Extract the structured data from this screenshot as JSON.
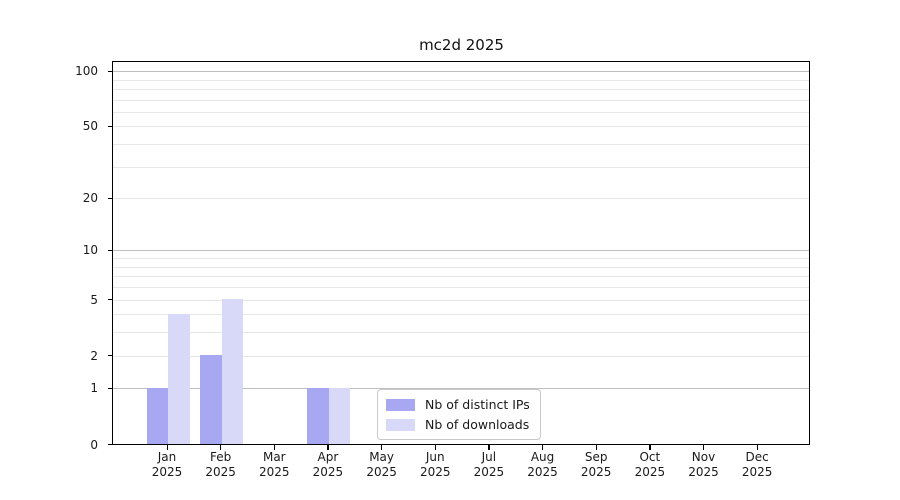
{
  "chart_data": {
    "type": "bar",
    "title": "mc2d 2025",
    "categories": [
      "Jan",
      "Feb",
      "Mar",
      "Apr",
      "May",
      "Jun",
      "Jul",
      "Aug",
      "Sep",
      "Oct",
      "Nov",
      "Dec"
    ],
    "x_year_label": "2025",
    "series": [
      {
        "name": "Nb of distinct IPs",
        "color": "#a8a8f2",
        "values": [
          1,
          2,
          0,
          1,
          0,
          0,
          0,
          0,
          0,
          0,
          0,
          0
        ]
      },
      {
        "name": "Nb of downloads",
        "color": "#d8d9f9",
        "values": [
          4,
          5,
          0,
          1,
          0,
          0,
          0,
          0,
          0,
          0,
          0,
          0
        ]
      }
    ],
    "y_axis": {
      "scale": "symlog-log1p",
      "tick_values": [
        0,
        1,
        2,
        5,
        10,
        20,
        50,
        100
      ],
      "tick_labels": [
        "0",
        "1",
        "2",
        "5",
        "10",
        "20",
        "50",
        "100"
      ],
      "major_gridlines": [
        1,
        10,
        100
      ],
      "minor_gridlines": [
        2,
        3,
        4,
        5,
        6,
        7,
        8,
        9,
        20,
        30,
        40,
        50,
        60,
        70,
        80,
        90
      ],
      "ylim": [
        0,
        112
      ]
    },
    "grid": true,
    "xlabel": "",
    "ylabel": "",
    "legend": {
      "position": "lower center",
      "labels": [
        "Nb of distinct IPs",
        "Nb of downloads"
      ]
    }
  },
  "colors": {
    "background": "#ffffff",
    "axis_frame": "#000000",
    "grid_major": "#bfbfbf",
    "grid_minor": "#e7e7e7",
    "text": "#1a1a1a",
    "legend_border": "#c9c9c9"
  }
}
